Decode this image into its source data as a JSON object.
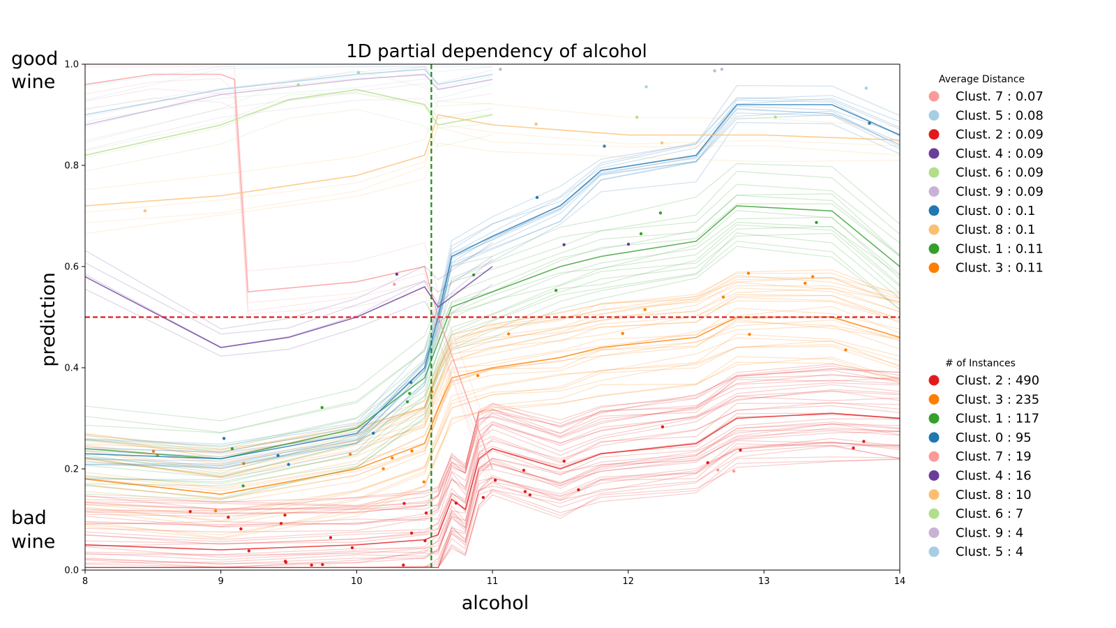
{
  "chart_data": {
    "type": "line",
    "title": "1D partial dependency of alcohol",
    "xlabel": "alcohol",
    "ylabel": "prediction",
    "xlim": [
      8,
      14
    ],
    "ylim": [
      0.0,
      1.0
    ],
    "xticks": [
      "8",
      "9",
      "10",
      "11",
      "12",
      "13",
      "14"
    ],
    "yticks": [
      "0.0",
      "0.2",
      "0.4",
      "0.6",
      "0.8",
      "1.0"
    ],
    "grid": false,
    "corner_labels": {
      "top": "good wine",
      "bottom": "bad wine"
    },
    "reference_lines": [
      {
        "orientation": "horizontal",
        "y": 0.5,
        "color": "#e41a1c",
        "style": "dashed"
      },
      {
        "orientation": "vertical",
        "x": 10.55,
        "color": "#1a8a1a",
        "style": "dashed"
      }
    ],
    "cluster_colors": {
      "0": "#1f78b4",
      "1": "#33a02c",
      "2": "#e31a1c",
      "3": "#ff7f00",
      "4": "#6a3d9a",
      "5": "#a6cee3",
      "6": "#b2df8a",
      "7": "#fb9a99",
      "8": "#fdbf6f",
      "9": "#cab2d6"
    },
    "series": [
      {
        "name": "Clust. 0",
        "count": 95,
        "avg_distance": 0.1,
        "x": [
          8,
          9,
          10,
          10.5,
          10.6,
          10.7,
          11,
          11.5,
          11.8,
          12.5,
          12.8,
          13.5,
          14
        ],
        "y": [
          0.23,
          0.22,
          0.27,
          0.4,
          0.5,
          0.62,
          0.66,
          0.72,
          0.79,
          0.82,
          0.92,
          0.92,
          0.86
        ]
      },
      {
        "name": "Clust. 1",
        "count": 117,
        "avg_distance": 0.11,
        "x": [
          8,
          9,
          10,
          10.5,
          10.6,
          10.7,
          11,
          11.5,
          11.8,
          12.5,
          12.8,
          13.5,
          14
        ],
        "y": [
          0.24,
          0.22,
          0.28,
          0.38,
          0.45,
          0.52,
          0.55,
          0.6,
          0.62,
          0.65,
          0.72,
          0.71,
          0.6
        ]
      },
      {
        "name": "Clust. 2",
        "count": 490,
        "avg_distance": 0.09,
        "x": [
          8,
          9,
          10,
          10.5,
          10.6,
          10.7,
          10.8,
          10.9,
          11,
          11.5,
          11.8,
          12.5,
          12.8,
          13.5,
          14
        ],
        "y": [
          0.05,
          0.04,
          0.05,
          0.06,
          0.07,
          0.14,
          0.12,
          0.22,
          0.24,
          0.2,
          0.23,
          0.25,
          0.3,
          0.31,
          0.3
        ]
      },
      {
        "name": "Clust. 3",
        "count": 235,
        "avg_distance": 0.11,
        "x": [
          8,
          9,
          10,
          10.5,
          10.6,
          10.7,
          11,
          11.5,
          11.8,
          12.5,
          12.8,
          13.5,
          14
        ],
        "y": [
          0.18,
          0.15,
          0.2,
          0.25,
          0.32,
          0.38,
          0.4,
          0.42,
          0.44,
          0.46,
          0.5,
          0.5,
          0.46
        ]
      },
      {
        "name": "Clust. 4",
        "count": 16,
        "avg_distance": 0.09,
        "x": [
          8,
          9,
          9.5,
          10,
          10.5,
          10.6,
          11
        ],
        "y": [
          0.58,
          0.44,
          0.46,
          0.5,
          0.56,
          0.52,
          0.6
        ]
      },
      {
        "name": "Clust. 5",
        "count": 4,
        "avg_distance": 0.08,
        "x": [
          8,
          9,
          10,
          10.5,
          10.6,
          11
        ],
        "y": [
          0.9,
          0.95,
          0.98,
          0.99,
          0.96,
          0.98
        ]
      },
      {
        "name": "Clust. 6",
        "count": 7,
        "avg_distance": 0.09,
        "x": [
          8,
          9,
          9.5,
          10,
          10.5,
          10.6,
          11
        ],
        "y": [
          0.82,
          0.88,
          0.93,
          0.95,
          0.92,
          0.88,
          0.9
        ]
      },
      {
        "name": "Clust. 7",
        "count": 19,
        "avg_distance": 0.07,
        "x": [
          8,
          8.5,
          9,
          9.1,
          9.2,
          10,
          10.5,
          10.6,
          11
        ],
        "y": [
          0.96,
          0.98,
          0.98,
          0.97,
          0.55,
          0.57,
          0.6,
          0.5,
          0.2
        ]
      },
      {
        "name": "Clust. 8",
        "count": 10,
        "avg_distance": 0.1,
        "x": [
          8,
          9,
          10,
          10.5,
          10.6,
          11,
          12,
          13,
          14
        ],
        "y": [
          0.72,
          0.74,
          0.78,
          0.82,
          0.9,
          0.88,
          0.86,
          0.86,
          0.85
        ]
      },
      {
        "name": "Clust. 9",
        "count": 4,
        "avg_distance": 0.09,
        "x": [
          8,
          9,
          10,
          10.5,
          10.6,
          11
        ],
        "y": [
          0.88,
          0.94,
          0.97,
          0.98,
          0.95,
          0.97
        ]
      }
    ],
    "legends": [
      {
        "title": "Average Distance",
        "placement": "right-top",
        "entries": [
          {
            "cluster": "7",
            "label": "Clust. 7 : 0.07"
          },
          {
            "cluster": "5",
            "label": "Clust. 5 : 0.08"
          },
          {
            "cluster": "2",
            "label": "Clust. 2 : 0.09"
          },
          {
            "cluster": "4",
            "label": "Clust. 4 : 0.09"
          },
          {
            "cluster": "6",
            "label": "Clust. 6 : 0.09"
          },
          {
            "cluster": "9",
            "label": "Clust. 9 : 0.09"
          },
          {
            "cluster": "0",
            "label": "Clust. 0 : 0.1"
          },
          {
            "cluster": "8",
            "label": "Clust. 8 : 0.1"
          },
          {
            "cluster": "1",
            "label": "Clust. 1 : 0.11"
          },
          {
            "cluster": "3",
            "label": "Clust. 3 : 0.11"
          }
        ]
      },
      {
        "title": "# of Instances",
        "placement": "right-bottom",
        "entries": [
          {
            "cluster": "2",
            "label": "Clust. 2 : 490"
          },
          {
            "cluster": "3",
            "label": "Clust. 3 : 235"
          },
          {
            "cluster": "1",
            "label": "Clust. 1 : 117"
          },
          {
            "cluster": "0",
            "label": "Clust. 0 : 95"
          },
          {
            "cluster": "7",
            "label": "Clust. 7 : 19"
          },
          {
            "cluster": "4",
            "label": "Clust. 4 : 16"
          },
          {
            "cluster": "8",
            "label": "Clust. 8 : 10"
          },
          {
            "cluster": "6",
            "label": "Clust. 6 : 7"
          },
          {
            "cluster": "9",
            "label": "Clust. 9 : 4"
          },
          {
            "cluster": "5",
            "label": "Clust. 5 : 4"
          }
        ]
      }
    ]
  }
}
